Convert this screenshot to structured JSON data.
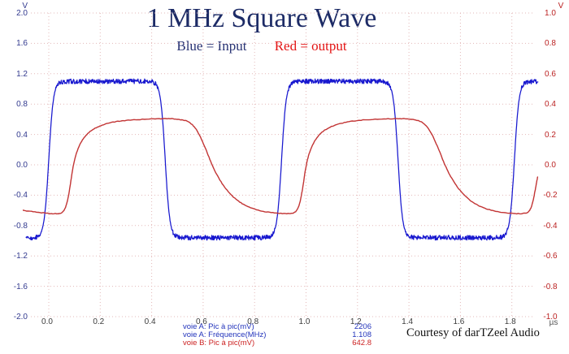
{
  "chart_data": {
    "type": "line",
    "title": "1 MHz Square Wave",
    "legend": [
      {
        "label": "Blue = Input",
        "color": "#283273"
      },
      {
        "label": "Red = output",
        "color": "#e31212"
      }
    ],
    "x_axis": {
      "unit": "µs",
      "tick_values": [
        0.0,
        0.2,
        0.4,
        0.6,
        0.8,
        1.0,
        1.2,
        1.4,
        1.6,
        1.8
      ],
      "tick_labels": [
        "0.0",
        "0.2",
        "0.4",
        "0.6",
        "0.8",
        "1.0",
        "1.2",
        "1.4",
        "1.6",
        "1.8"
      ],
      "range_us": [
        -0.088,
        1.902
      ],
      "grid": true
    },
    "y_axis_left": {
      "unit": "V",
      "color": "#333a8f",
      "tick_values": [
        2.0,
        1.6,
        1.2,
        0.8,
        0.4,
        0.0,
        -0.4,
        -0.8,
        -1.2,
        -1.6,
        -2.0
      ],
      "tick_labels": [
        "2.0",
        "1.6",
        "1.2",
        "0.8",
        "0.4",
        "0.0",
        "-0.4",
        "-0.8",
        "-1.2",
        "-1.6",
        "-2.0"
      ],
      "range": [
        -2.0,
        2.0
      ]
    },
    "y_axis_right": {
      "unit": "V",
      "color": "#bb2222",
      "tick_values": [
        1.0,
        0.8,
        0.6,
        0.4,
        0.2,
        0.0,
        -0.2,
        -0.4,
        -0.6,
        -0.8,
        -1.0
      ],
      "tick_labels": [
        "1.0",
        "0.8",
        "0.6",
        "0.4",
        "0.2",
        "0.0",
        "-0.2",
        "-0.4",
        "-0.6",
        "-0.8",
        "-1.0"
      ],
      "range": [
        -1.0,
        1.0
      ]
    },
    "series": [
      {
        "name": "input",
        "axis": "left",
        "shape": "square",
        "color": "#1818cf",
        "high_v": 1.1,
        "low_v": -0.96,
        "period_us": 0.905,
        "duty": 0.5,
        "first_rise_us": 0.0,
        "transition_us": 0.09,
        "noise_vpp": 0.062
      },
      {
        "name": "output",
        "axis": "right",
        "shape": "curve",
        "color": "#c23434",
        "peak_to_peak_mv": 642.8,
        "noise_vpp": 0.004,
        "points": [
          [
            -0.105,
            -0.299
          ],
          [
            -0.05,
            -0.311
          ],
          [
            0.0,
            -0.32
          ],
          [
            0.035,
            -0.324
          ],
          [
            0.055,
            -0.316
          ],
          [
            0.07,
            -0.262
          ],
          [
            0.082,
            -0.155
          ],
          [
            0.095,
            0.0
          ],
          [
            0.112,
            0.105
          ],
          [
            0.135,
            0.178
          ],
          [
            0.165,
            0.228
          ],
          [
            0.2,
            0.258
          ],
          [
            0.24,
            0.278
          ],
          [
            0.29,
            0.292
          ],
          [
            0.35,
            0.299
          ],
          [
            0.42,
            0.303
          ],
          [
            0.47,
            0.304
          ],
          [
            0.51,
            0.299
          ],
          [
            0.545,
            0.286
          ],
          [
            0.575,
            0.235
          ],
          [
            0.608,
            0.115
          ],
          [
            0.634,
            0.0
          ],
          [
            0.662,
            -0.095
          ],
          [
            0.7,
            -0.185
          ],
          [
            0.74,
            -0.245
          ],
          [
            0.78,
            -0.282
          ],
          [
            0.83,
            -0.306
          ],
          [
            0.88,
            -0.318
          ],
          [
            0.93,
            -0.323
          ],
          [
            0.96,
            -0.316
          ],
          [
            0.975,
            -0.262
          ],
          [
            0.987,
            -0.155
          ],
          [
            1.0,
            0.0
          ],
          [
            1.017,
            0.105
          ],
          [
            1.04,
            0.178
          ],
          [
            1.07,
            0.228
          ],
          [
            1.105,
            0.258
          ],
          [
            1.145,
            0.278
          ],
          [
            1.195,
            0.292
          ],
          [
            1.255,
            0.299
          ],
          [
            1.325,
            0.303
          ],
          [
            1.375,
            0.304
          ],
          [
            1.415,
            0.299
          ],
          [
            1.45,
            0.286
          ],
          [
            1.48,
            0.235
          ],
          [
            1.513,
            0.115
          ],
          [
            1.539,
            0.0
          ],
          [
            1.567,
            -0.095
          ],
          [
            1.605,
            -0.185
          ],
          [
            1.645,
            -0.245
          ],
          [
            1.685,
            -0.282
          ],
          [
            1.735,
            -0.306
          ],
          [
            1.785,
            -0.318
          ],
          [
            1.835,
            -0.323
          ],
          [
            1.865,
            -0.316
          ],
          [
            1.88,
            -0.262
          ],
          [
            1.892,
            -0.155
          ],
          [
            1.9,
            -0.08
          ]
        ]
      }
    ],
    "readouts": [
      {
        "label": "voie A: Pic à pic(mV)",
        "value": "2206",
        "color": "#2233bb"
      },
      {
        "label": "voie A: Fréquence(MHz)",
        "value": "1.108",
        "color": "#2233bb"
      },
      {
        "label": "voie B: Pic à pic(mV)",
        "value": "642.8",
        "color": "#cc2222"
      }
    ]
  },
  "footer": {
    "courtesy": "Courtesy of darTZeel Audio"
  }
}
